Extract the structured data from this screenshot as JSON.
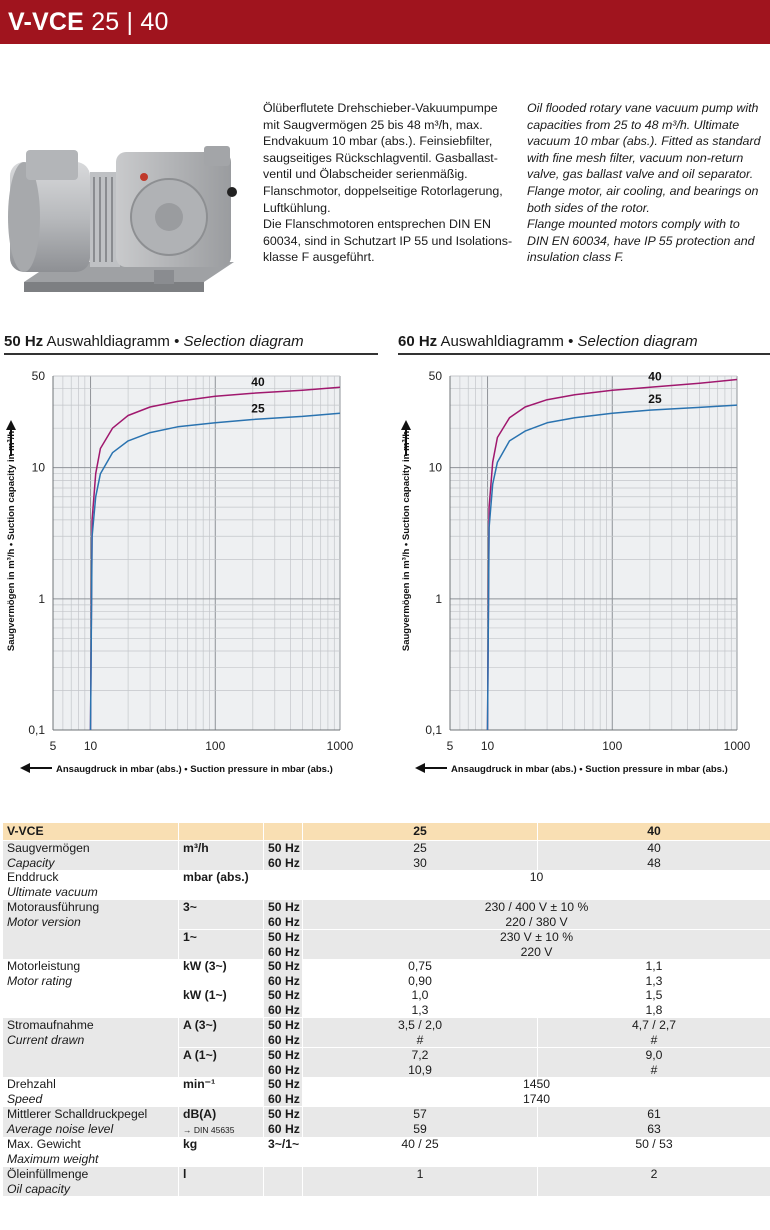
{
  "header": {
    "model": "V-VCE",
    "sizes": "25 | 40"
  },
  "description_de": [
    "Ölüberflutete Drehschieber-Vakuumpumpe",
    "mit Saugvermögen 25 bis 48 m³/h, max.",
    "Endvakuum 10 mbar (abs.). Feinsiebfilter,",
    "saugseitiges Rückschlagventil. Gasballast-",
    "ventil und Ölabscheider serienmäßig.",
    "Flanschmotor, doppelseitige Rotorlagerung,",
    "Luftkühlung.",
    "Die Flanschmotoren entsprechen DIN EN",
    "60034, sind in Schutzart IP 55 und Isolations-",
    "klasse F ausgeführt."
  ],
  "description_en": [
    "Oil flooded rotary vane vacuum pump with",
    "capacities from 25 to 48 m³/h. Ultimate",
    "vacuum 10 mbar (abs.). Fitted as standard",
    "with fine mesh filter, vacuum non-return",
    "valve, gas ballast valve and oil separator.",
    "Flange motor, air cooling, and bearings on",
    "both sides of the rotor.",
    "Flange mounted motors comply with to",
    "DIN EN 60034, have IP 55 protection and",
    "insulation class F."
  ],
  "diagrams": [
    {
      "freq": "50 Hz",
      "title_de": "Auswahldiagramm",
      "bullet": "•",
      "title_en": "Selection diagram"
    },
    {
      "freq": "60 Hz",
      "title_de": "Auswahldiagramm",
      "bullet": "•",
      "title_en": "Selection diagram"
    }
  ],
  "chart_data": [
    {
      "type": "line",
      "title": "50 Hz Auswahldiagramm • Selection diagram",
      "xlabel": "Ansaugdruck in mbar (abs.) • Suction pressure in mbar (abs.)",
      "ylabel": "Saugvermögen in m³/h • Suction capacity in m³/h",
      "x_scale": "log",
      "y_scale": "log",
      "xlim": [
        5,
        1000
      ],
      "ylim": [
        0.1,
        50
      ],
      "x_ticks": [
        "5",
        "10",
        "100",
        "1000"
      ],
      "y_ticks": [
        "0,1",
        "1",
        "10",
        "50"
      ],
      "grid": true,
      "series": [
        {
          "name": "40",
          "color": "#a0186e",
          "x": [
            10,
            10.3,
            11,
            12,
            15,
            20,
            30,
            50,
            100,
            200,
            500,
            1000
          ],
          "y": [
            0.1,
            4,
            9,
            14,
            20,
            25,
            29,
            32,
            35,
            37,
            39,
            41
          ]
        },
        {
          "name": "25",
          "color": "#2a73b0",
          "x": [
            10,
            10.3,
            11,
            12,
            15,
            20,
            30,
            50,
            100,
            200,
            500,
            1000
          ],
          "y": [
            0.1,
            3,
            6,
            9,
            13,
            16,
            18.5,
            20.5,
            22,
            23.3,
            24.6,
            26
          ]
        }
      ]
    },
    {
      "type": "line",
      "title": "60 Hz Auswahldiagramm • Selection diagram",
      "xlabel": "Ansaugdruck in mbar (abs.) • Suction pressure in mbar (abs.)",
      "ylabel": "Saugvermögen in m³/h • Suction capacity in m³/h",
      "x_scale": "log",
      "y_scale": "log",
      "xlim": [
        5,
        1000
      ],
      "ylim": [
        0.1,
        50
      ],
      "x_ticks": [
        "5",
        "10",
        "100",
        "1000"
      ],
      "y_ticks": [
        "0,1",
        "1",
        "10",
        "50"
      ],
      "grid": true,
      "series": [
        {
          "name": "40",
          "color": "#a0186e",
          "x": [
            10,
            10.3,
            11,
            12,
            15,
            20,
            30,
            50,
            100,
            200,
            500,
            1000
          ],
          "y": [
            0.1,
            5,
            11,
            17,
            24,
            29,
            33,
            36,
            39,
            41,
            44,
            47
          ]
        },
        {
          "name": "25",
          "color": "#2a73b0",
          "x": [
            10,
            10.3,
            11,
            12,
            15,
            20,
            30,
            50,
            100,
            200,
            500,
            1000
          ],
          "y": [
            0.1,
            3.5,
            7.5,
            11,
            16,
            19,
            22,
            24,
            26,
            27.5,
            28.8,
            30
          ]
        }
      ]
    }
  ],
  "table": {
    "head": {
      "model": "V-VCE",
      "col_a": "25",
      "col_b": "40"
    },
    "rows": [
      {
        "de": "Saugvermögen",
        "en": "Capacity",
        "unit": "m³/h",
        "lines": [
          {
            "hz": "50 Hz",
            "a": "25",
            "b": "40"
          },
          {
            "hz": "60 Hz",
            "a": "30",
            "b": "48"
          }
        ]
      },
      {
        "de": "Enddruck",
        "en": "Ultimate vacuum",
        "unit": "mbar (abs.)",
        "merged": "10"
      },
      {
        "de": "Motorausführung",
        "en": "Motor version",
        "sub": [
          {
            "unit": "3~",
            "lines": [
              {
                "hz": "50 Hz",
                "merged": "230 / 400 V ± 10 %"
              },
              {
                "hz": "60 Hz",
                "merged": "220 / 380 V"
              }
            ]
          },
          {
            "unit": "1~",
            "lines": [
              {
                "hz": "50 Hz",
                "merged": "230 V ± 10 %"
              },
              {
                "hz": "60 Hz",
                "merged": "220 V"
              }
            ]
          }
        ]
      },
      {
        "de": "Motorleistung",
        "en": "Motor rating",
        "sub": [
          {
            "unit": "kW (3~)",
            "lines": [
              {
                "hz": "50 Hz",
                "a": "0,75",
                "b": "1,1"
              },
              {
                "hz": "60 Hz",
                "a": "0,90",
                "b": "1,3"
              }
            ]
          },
          {
            "unit": "kW (1~)",
            "lines": [
              {
                "hz": "50 Hz",
                "a": "1,0",
                "b": "1,5"
              },
              {
                "hz": "60 Hz",
                "a": "1,3",
                "b": "1,8"
              }
            ]
          }
        ]
      },
      {
        "de": "Stromaufnahme",
        "en": "Current drawn",
        "sub": [
          {
            "unit": "A (3~)",
            "lines": [
              {
                "hz": "50 Hz",
                "a": "3,5 / 2,0",
                "b": "4,7 / 2,7"
              },
              {
                "hz": "60 Hz",
                "a": "#",
                "b": "#"
              }
            ]
          },
          {
            "unit": "A (1~)",
            "lines": [
              {
                "hz": "50 Hz",
                "a": "7,2",
                "b": "9,0"
              },
              {
                "hz": "60 Hz",
                "a": "10,9",
                "b": "#"
              }
            ]
          }
        ]
      },
      {
        "de": "Drehzahl",
        "en": "Speed",
        "unit": "min⁻¹",
        "lines": [
          {
            "hz": "50 Hz",
            "merged": "1450"
          },
          {
            "hz": "60 Hz",
            "merged": "1740"
          }
        ]
      },
      {
        "de": "Mittlerer Schalldruckpegel",
        "en": "Average noise level",
        "unit": "dB(A)",
        "unit_note": "→ DIN 45635",
        "lines": [
          {
            "hz": "50 Hz",
            "a": "57",
            "b": "61"
          },
          {
            "hz": "60 Hz",
            "a": "59",
            "b": "63"
          }
        ]
      },
      {
        "de": "Max. Gewicht",
        "en": "Maximum weight",
        "unit": "kg",
        "hz": "3~/1~",
        "a": "40 / 25",
        "b": "50 / 53"
      },
      {
        "de": "Öleinfüllmenge",
        "en": "Oil capacity",
        "unit": "l",
        "a": "1",
        "b": "2"
      }
    ]
  }
}
